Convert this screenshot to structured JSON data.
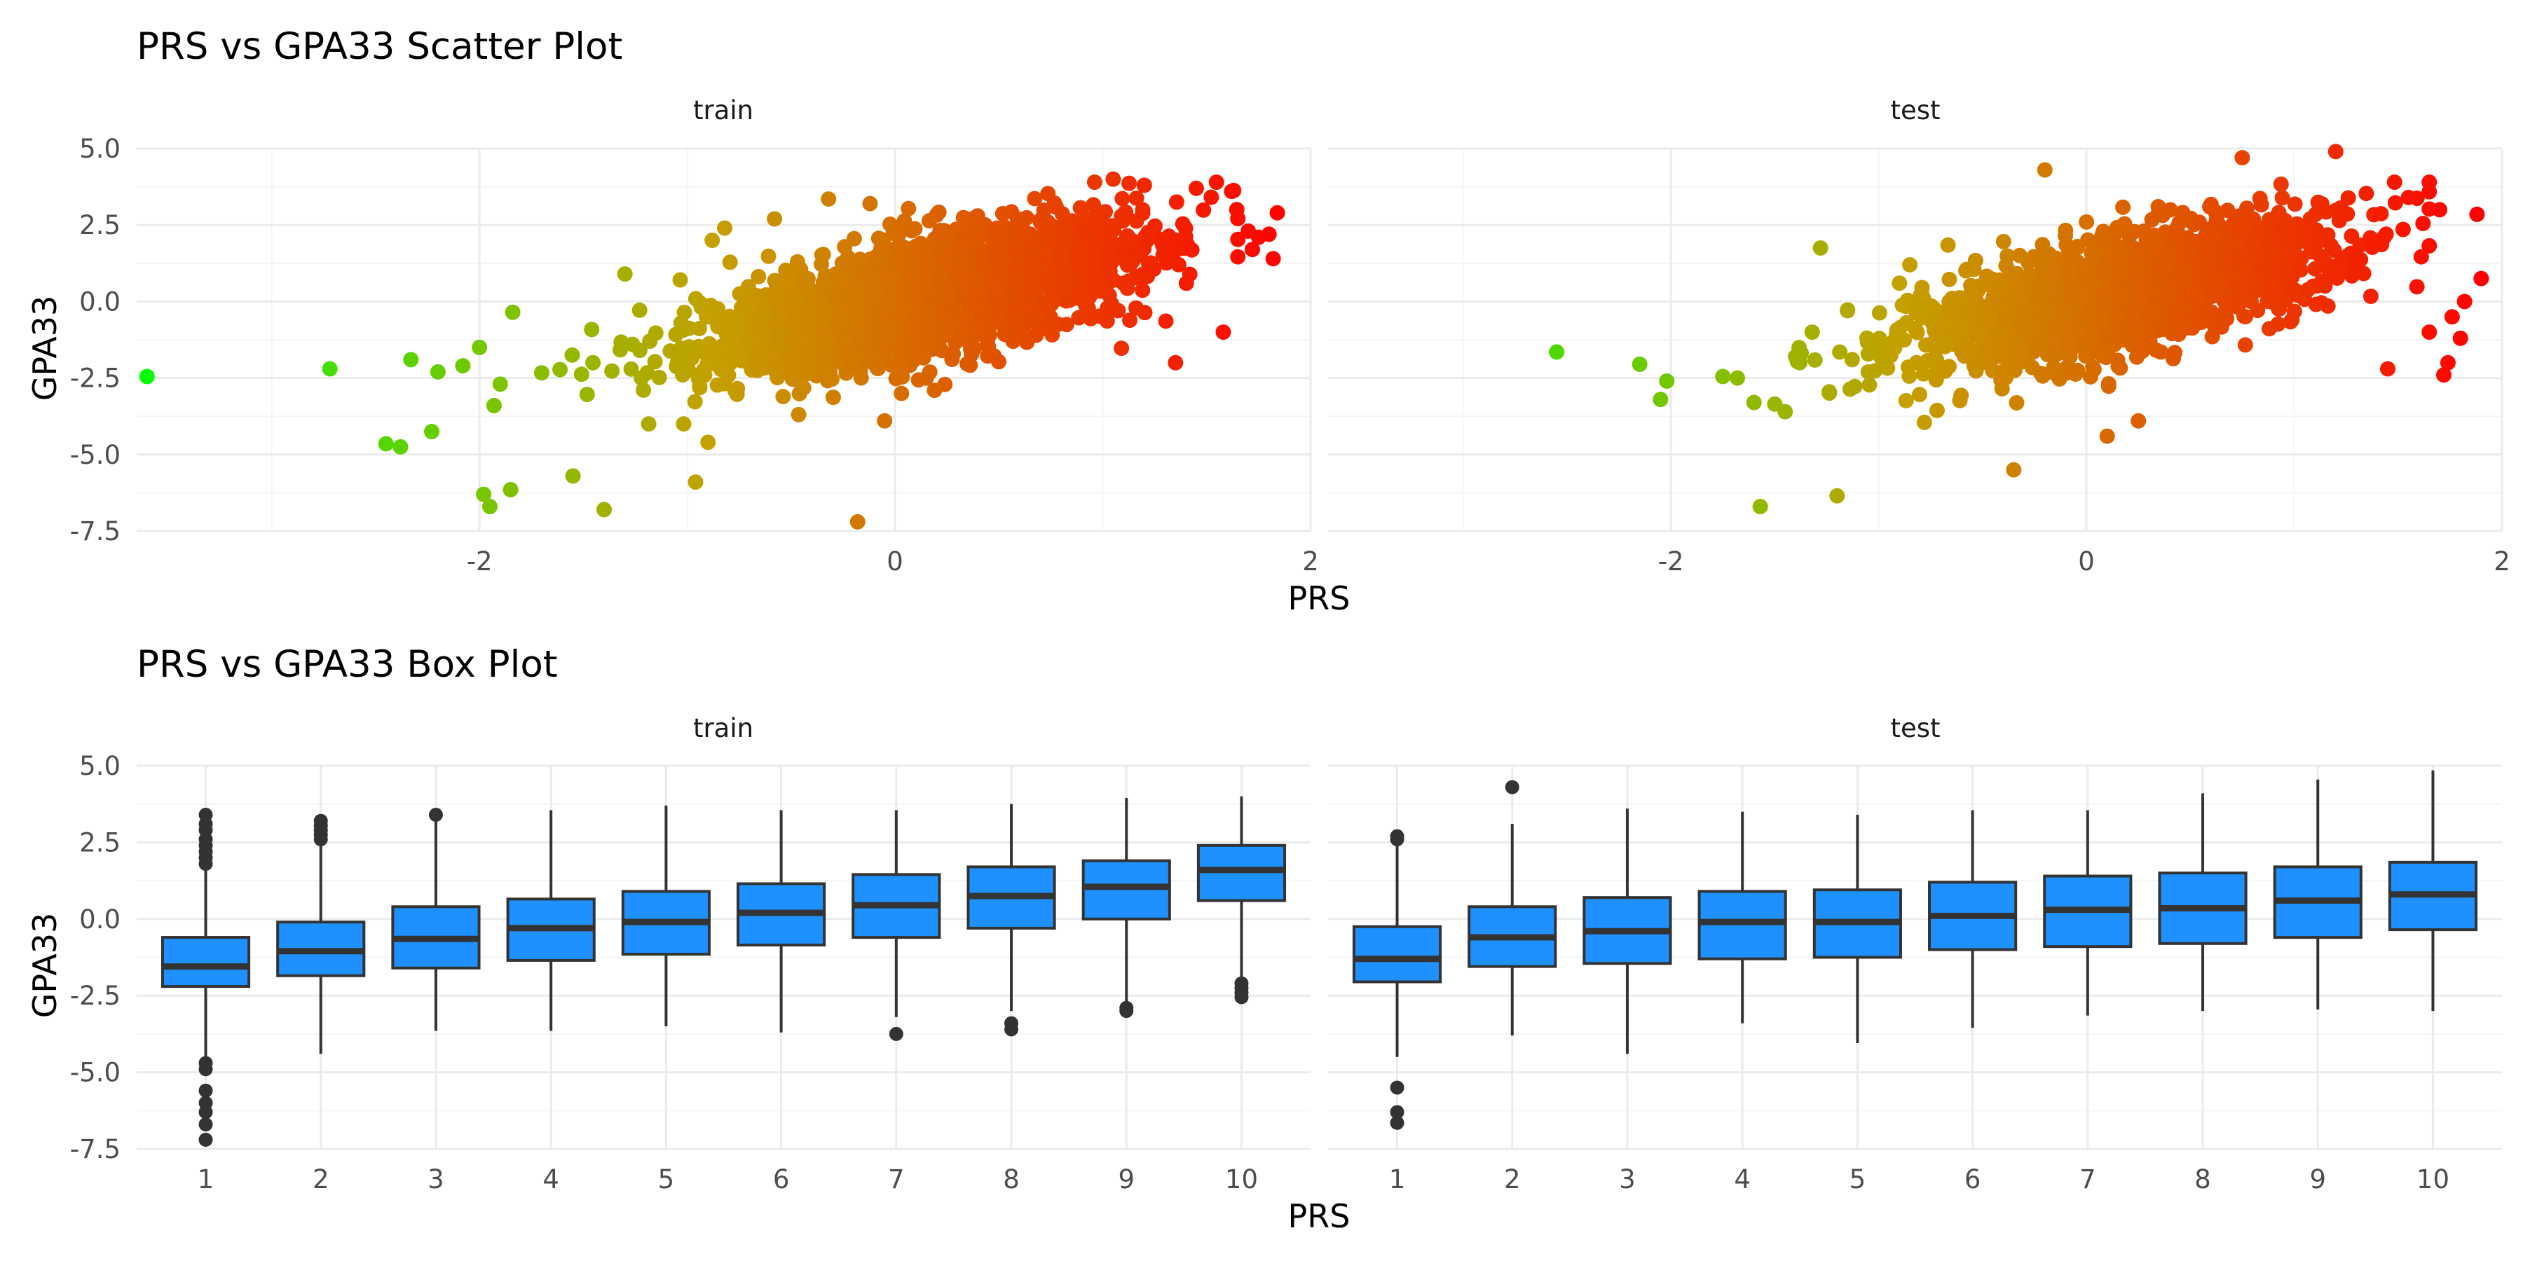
{
  "colors": {
    "background": "#ffffff",
    "grid_major": "#ebebeb",
    "grid_minor": "#f4f4f4",
    "point_low": "#00ff00",
    "point_high": "#ff0000",
    "box_fill": "#1e90ff",
    "box_line": "#333333",
    "outlier": "#333333"
  },
  "chart_data": [
    {
      "type": "scatter",
      "title": "PRS vs GPA33 Scatter Plot",
      "xlabel": "PRS",
      "ylabel": "GPA33",
      "facets": [
        "train",
        "test"
      ],
      "xlim": [
        -3.65,
        2.0
      ],
      "ylim": [
        -7.5,
        5.0
      ],
      "x_ticks": [
        "-2",
        "0",
        "2"
      ],
      "y_ticks": [
        "-7.5",
        "-5.0",
        "-2.5",
        "0.0",
        "2.5",
        "5.0"
      ],
      "color_scale": {
        "variable": "PRS",
        "low": "#00ff00",
        "high": "#ff0000"
      },
      "grid": true,
      "legend": "none",
      "panels": [
        {
          "name": "train",
          "cloud": {
            "n": 2600,
            "x_mean": 0.15,
            "x_sd": 0.5,
            "slope": 1.5,
            "intercept": -0.08,
            "resid_sd": 0.95
          },
          "points": [
            [
              -3.6,
              -2.45
            ],
            [
              -2.72,
              -2.2
            ],
            [
              -2.45,
              -4.65
            ],
            [
              -2.38,
              -4.75
            ],
            [
              -2.33,
              -1.9
            ],
            [
              -2.23,
              -4.25
            ],
            [
              -2.2,
              -2.3
            ],
            [
              -2.08,
              -2.1
            ],
            [
              -2.0,
              -1.5
            ],
            [
              -1.98,
              -6.3
            ],
            [
              -1.95,
              -6.7
            ],
            [
              -1.93,
              -3.4
            ],
            [
              -1.9,
              -2.7
            ],
            [
              -1.85,
              -6.15
            ],
            [
              -1.84,
              -0.35
            ],
            [
              -1.55,
              -5.7
            ],
            [
              -1.4,
              -6.8
            ],
            [
              -1.3,
              0.9
            ],
            [
              -0.96,
              -5.9
            ],
            [
              -0.9,
              -4.6
            ],
            [
              -0.88,
              2.0
            ],
            [
              -0.82,
              2.4
            ],
            [
              -0.58,
              2.7
            ],
            [
              -0.32,
              3.35
            ],
            [
              -0.18,
              -7.2
            ],
            [
              -0.12,
              3.2
            ],
            [
              -0.05,
              -3.9
            ],
            [
              1.05,
              4.0
            ],
            [
              1.2,
              3.8
            ],
            [
              1.35,
              -2.0
            ],
            [
              1.45,
              3.7
            ],
            [
              1.58,
              -1.0
            ],
            [
              1.62,
              3.6
            ],
            [
              1.7,
              2.3
            ],
            [
              1.72,
              1.7
            ],
            [
              1.75,
              2.1
            ],
            [
              1.8,
              2.2
            ],
            [
              1.82,
              1.4
            ],
            [
              1.84,
              2.9
            ]
          ]
        },
        {
          "name": "test",
          "cloud": {
            "n": 1700,
            "x_mean": 0.18,
            "x_sd": 0.5,
            "slope": 1.5,
            "intercept": -0.08,
            "resid_sd": 0.95
          },
          "points": [
            [
              -2.55,
              -1.65
            ],
            [
              -2.15,
              -2.05
            ],
            [
              -2.02,
              -2.6
            ],
            [
              -2.05,
              -3.2
            ],
            [
              -1.75,
              -2.45
            ],
            [
              -1.68,
              -2.5
            ],
            [
              -1.6,
              -3.3
            ],
            [
              -1.57,
              -6.7
            ],
            [
              -1.5,
              -3.35
            ],
            [
              -1.45,
              -3.6
            ],
            [
              -1.4,
              -1.8
            ],
            [
              -1.38,
              -2.0
            ],
            [
              -1.32,
              -1.0
            ],
            [
              -1.28,
              1.75
            ],
            [
              -1.2,
              -6.35
            ],
            [
              -1.15,
              -0.3
            ],
            [
              -1.05,
              -2.3
            ],
            [
              -0.92,
              -1.4
            ],
            [
              -0.9,
              0.6
            ],
            [
              -0.85,
              1.2
            ],
            [
              -0.78,
              -3.95
            ],
            [
              -0.35,
              -5.5
            ],
            [
              -0.2,
              4.3
            ],
            [
              0.0,
              2.6
            ],
            [
              0.1,
              -4.4
            ],
            [
              0.25,
              -3.9
            ],
            [
              0.75,
              4.7
            ],
            [
              1.2,
              4.9
            ],
            [
              1.45,
              -2.2
            ],
            [
              1.55,
              3.4
            ],
            [
              1.62,
              2.55
            ],
            [
              1.65,
              -1.0
            ],
            [
              1.7,
              3.0
            ],
            [
              1.72,
              -2.4
            ],
            [
              1.74,
              -2.0
            ],
            [
              1.76,
              -0.5
            ],
            [
              1.8,
              -1.2
            ],
            [
              1.82,
              0.0
            ],
            [
              1.88,
              2.85
            ],
            [
              1.9,
              0.75
            ]
          ]
        }
      ]
    },
    {
      "type": "box",
      "title": "PRS vs GPA33 Box Plot",
      "xlabel": "PRS",
      "ylabel": "GPA33",
      "facets": [
        "train",
        "test"
      ],
      "categories": [
        "1",
        "2",
        "3",
        "4",
        "5",
        "6",
        "7",
        "8",
        "9",
        "10"
      ],
      "ylim": [
        -7.5,
        5.0
      ],
      "y_ticks": [
        "-7.5",
        "-5.0",
        "-2.5",
        "0.0",
        "2.5",
        "5.0"
      ],
      "grid": true,
      "legend": "none",
      "panels": [
        {
          "name": "train",
          "boxes": [
            {
              "min": -4.5,
              "q1": -2.2,
              "median": -1.55,
              "q3": -0.6,
              "max": 1.6,
              "outliers": [
                3.4,
                3.1,
                2.9,
                2.6,
                2.4,
                2.2,
                2.0,
                1.8,
                -4.7,
                -4.9,
                -5.6,
                -6.0,
                -6.3,
                -6.7,
                -7.2
              ]
            },
            {
              "min": -4.4,
              "q1": -1.85,
              "median": -1.05,
              "q3": -0.1,
              "max": 2.5,
              "outliers": [
                3.2,
                3.05,
                2.9,
                2.75,
                2.6
              ]
            },
            {
              "min": -3.65,
              "q1": -1.6,
              "median": -0.65,
              "q3": 0.4,
              "max": 3.3,
              "outliers": [
                3.4
              ]
            },
            {
              "min": -3.65,
              "q1": -1.35,
              "median": -0.3,
              "q3": 0.65,
              "max": 3.55,
              "outliers": []
            },
            {
              "min": -3.5,
              "q1": -1.15,
              "median": -0.1,
              "q3": 0.9,
              "max": 3.7,
              "outliers": []
            },
            {
              "min": -3.7,
              "q1": -0.85,
              "median": 0.2,
              "q3": 1.15,
              "max": 3.55,
              "outliers": []
            },
            {
              "min": -3.2,
              "q1": -0.6,
              "median": 0.45,
              "q3": 1.45,
              "max": 3.55,
              "outliers": [
                -3.75
              ]
            },
            {
              "min": -3.0,
              "q1": -0.3,
              "median": 0.75,
              "q3": 1.7,
              "max": 3.75,
              "outliers": [
                -3.4,
                -3.6
              ]
            },
            {
              "min": -2.8,
              "q1": 0.0,
              "median": 1.05,
              "q3": 1.9,
              "max": 3.95,
              "outliers": [
                -2.9,
                -3.0
              ]
            },
            {
              "min": -2.0,
              "q1": 0.6,
              "median": 1.6,
              "q3": 2.4,
              "max": 4.0,
              "outliers": [
                -2.1,
                -2.25,
                -2.4,
                -2.55
              ]
            }
          ]
        },
        {
          "name": "test",
          "boxes": [
            {
              "min": -4.5,
              "q1": -2.05,
              "median": -1.3,
              "q3": -0.25,
              "max": 2.55,
              "outliers": [
                2.7,
                2.6,
                -5.5,
                -6.3,
                -6.65
              ]
            },
            {
              "min": -3.8,
              "q1": -1.55,
              "median": -0.6,
              "q3": 0.4,
              "max": 3.1,
              "outliers": [
                4.3
              ]
            },
            {
              "min": -4.4,
              "q1": -1.45,
              "median": -0.4,
              "q3": 0.7,
              "max": 3.6,
              "outliers": []
            },
            {
              "min": -3.4,
              "q1": -1.3,
              "median": -0.1,
              "q3": 0.9,
              "max": 3.5,
              "outliers": []
            },
            {
              "min": -4.05,
              "q1": -1.25,
              "median": -0.1,
              "q3": 0.95,
              "max": 3.4,
              "outliers": []
            },
            {
              "min": -3.55,
              "q1": -1.0,
              "median": 0.1,
              "q3": 1.2,
              "max": 3.55,
              "outliers": []
            },
            {
              "min": -3.15,
              "q1": -0.9,
              "median": 0.3,
              "q3": 1.4,
              "max": 3.55,
              "outliers": []
            },
            {
              "min": -3.0,
              "q1": -0.8,
              "median": 0.35,
              "q3": 1.5,
              "max": 4.1,
              "outliers": []
            },
            {
              "min": -2.95,
              "q1": -0.6,
              "median": 0.6,
              "q3": 1.7,
              "max": 4.55,
              "outliers": []
            },
            {
              "min": -3.0,
              "q1": -0.35,
              "median": 0.8,
              "q3": 1.85,
              "max": 4.85,
              "outliers": []
            }
          ]
        }
      ]
    }
  ]
}
